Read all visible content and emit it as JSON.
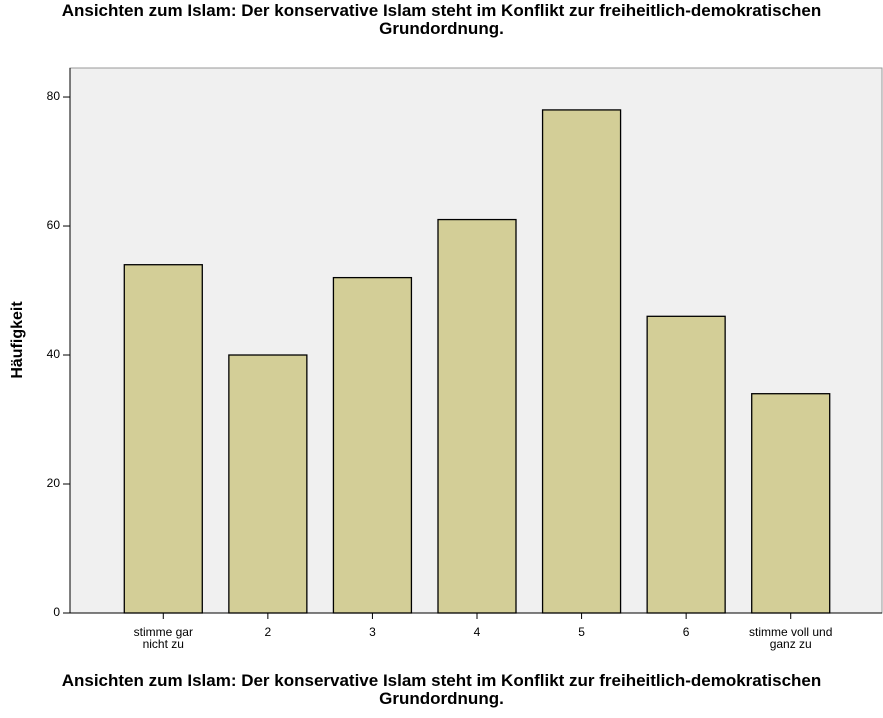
{
  "chart_data": {
    "type": "bar",
    "title": "Ansichten zum Islam: Der konservative Islam steht im Konflikt zur freiheitlich-demokratischen Grundordnung.",
    "x_label": "Ansichten zum Islam: Der konservative Islam steht im Konflikt zur freiheitlich-demokratischen Grundordnung.",
    "y_label": "Häufigkeit",
    "categories": [
      "stimme gar nicht zu",
      "2",
      "3",
      "4",
      "5",
      "6",
      "stimme voll und ganz zu"
    ],
    "values": [
      54,
      40,
      52,
      61,
      78,
      46,
      34
    ],
    "color": "#d3ce97",
    "ylim": [
      0,
      84.5
    ],
    "yticks": [
      0,
      20,
      40,
      60,
      80
    ],
    "grid": false
  }
}
